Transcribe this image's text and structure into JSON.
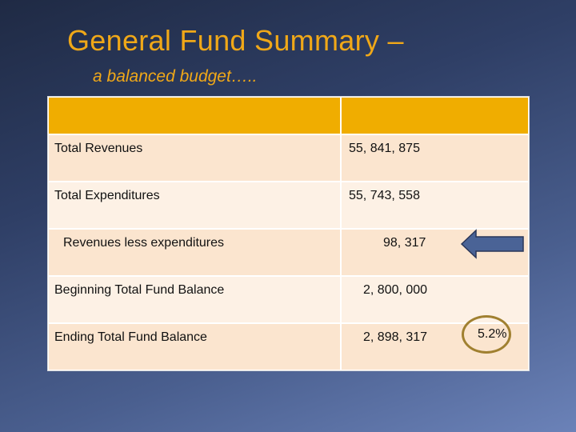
{
  "slide": {
    "title": "General Fund Summary –",
    "subtitle": "a balanced budget…..",
    "table": {
      "header": [
        "",
        ""
      ],
      "rows": [
        {
          "label": "Total Revenues",
          "value": "55, 841, 875"
        },
        {
          "label": "Total Expenditures",
          "value": "55, 743, 558"
        },
        {
          "label": "Revenues less expenditures",
          "value": "98, 317"
        },
        {
          "label": "Beginning Total Fund Balance",
          "value": "2, 800, 000"
        },
        {
          "label": "Ending Total Fund Balance",
          "value": "2, 898, 317"
        }
      ]
    },
    "callout_percent": "5.2%",
    "colors": {
      "title": "#f0a818",
      "header": "#f0ad00",
      "row_light": "#fbe5cf",
      "row_lighter": "#fdf1e5",
      "arrow_fill": "#4a6396",
      "ring": "#a08030"
    }
  }
}
